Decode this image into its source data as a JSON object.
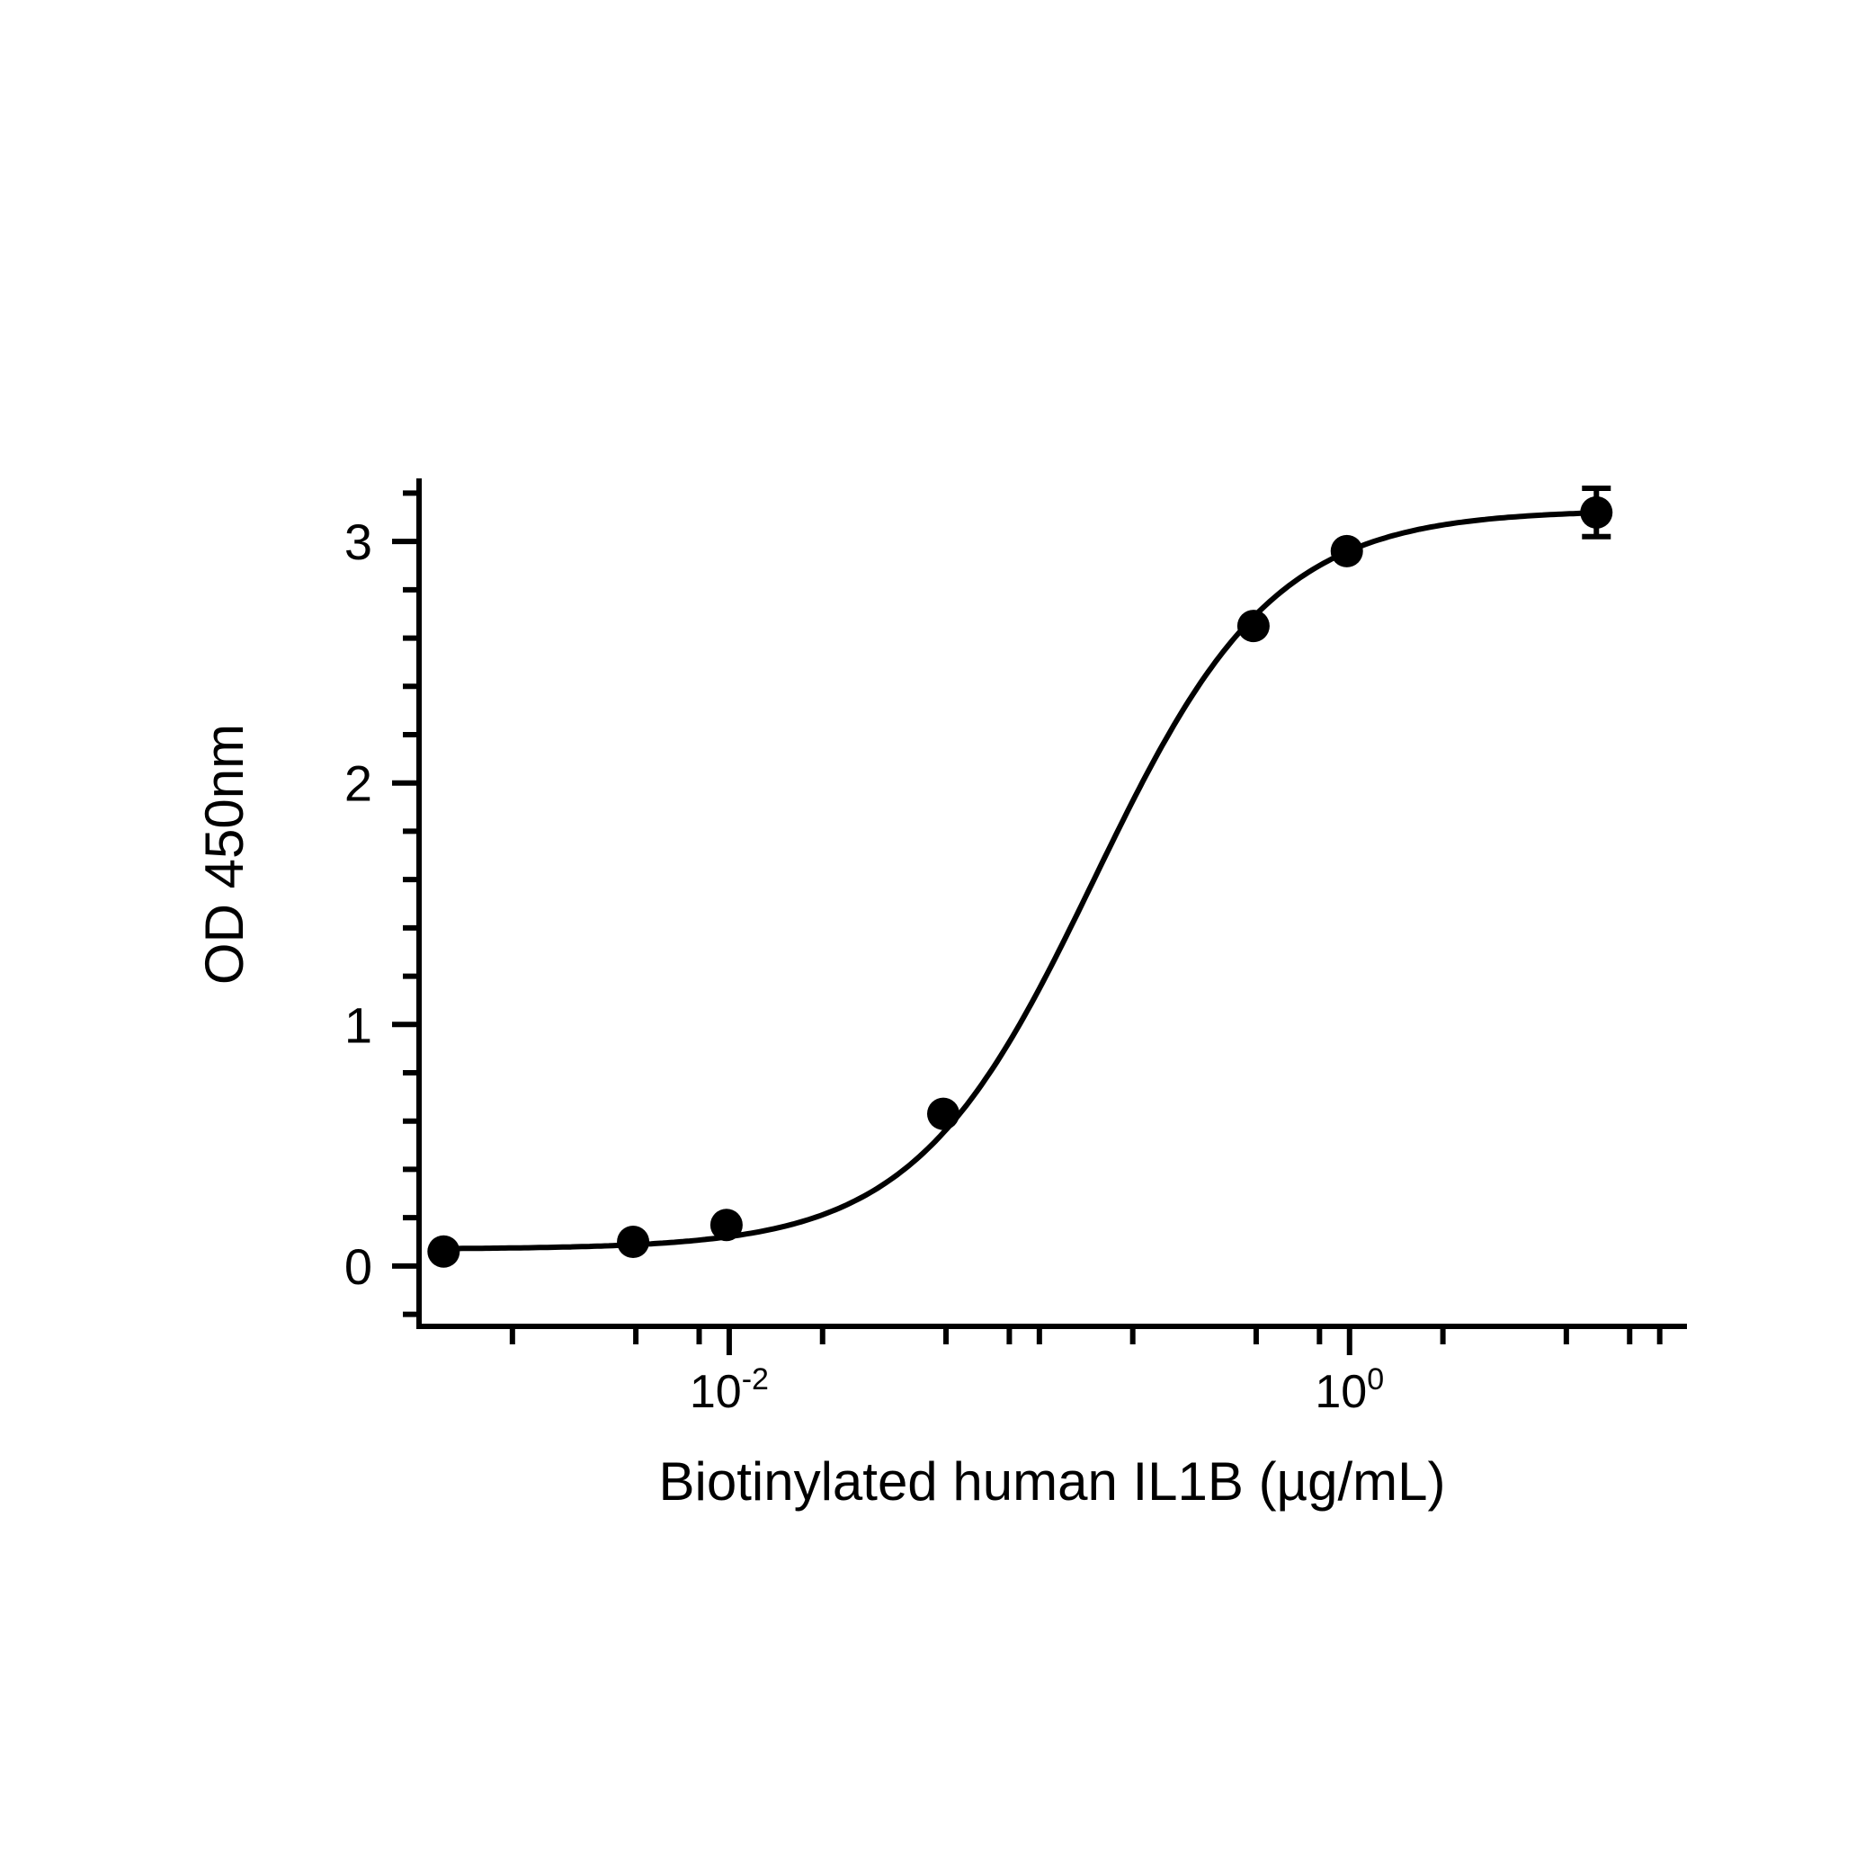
{
  "chart_data": {
    "type": "scatter",
    "title": "",
    "xlabel": "Biotinylated human IL1B (µg/mL)",
    "ylabel": "OD 450nm",
    "x_scale": "log10",
    "xlim": [
      0.001,
      12.0
    ],
    "ylim": [
      -0.25,
      3.25
    ],
    "x_ticks": [
      {
        "value": 0.01,
        "base": "10",
        "exp": "-2"
      },
      {
        "value": 1,
        "base": "10",
        "exp": "0"
      }
    ],
    "y_ticks": [
      {
        "value": 0,
        "label": "0"
      },
      {
        "value": 1,
        "label": "1"
      },
      {
        "value": 2,
        "label": "2"
      },
      {
        "value": 3,
        "label": "3"
      }
    ],
    "grid": false,
    "legend": "none",
    "series": [
      {
        "x": [
          0.0012,
          0.0049,
          0.0098,
          0.049,
          0.49,
          0.98,
          6.25
        ],
        "y": [
          0.06,
          0.1,
          0.17,
          0.63,
          2.65,
          2.96,
          3.12
        ],
        "error": [
          0,
          0,
          0,
          0,
          0,
          0,
          0.1
        ],
        "color": "#000000",
        "marker": "filled-circle"
      }
    ],
    "fit": {
      "model": "4PL",
      "bottom": 0.07,
      "top": 3.13,
      "ec50": 0.15,
      "hill": 1.5,
      "color": "#000000"
    }
  }
}
